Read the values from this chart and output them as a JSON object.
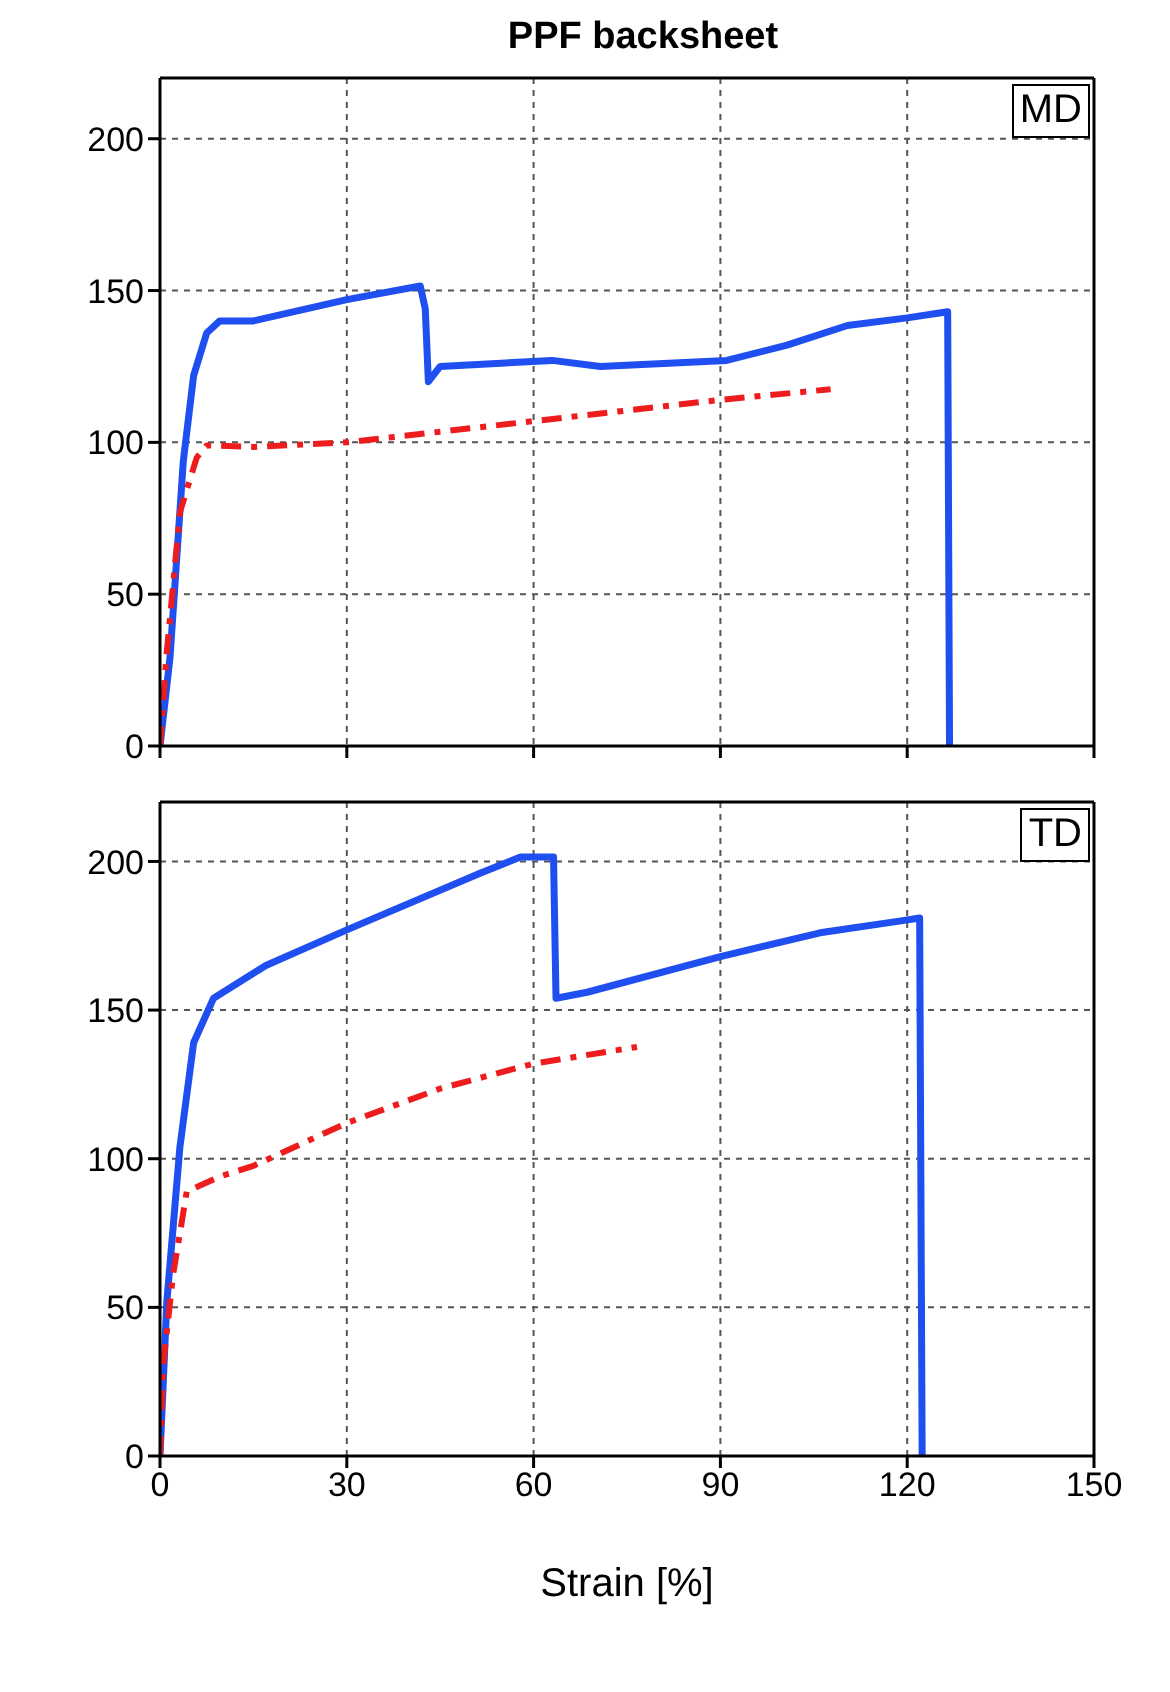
{
  "chart_data": [
    {
      "type": "line",
      "title": "PPF backsheet",
      "annotations": [
        "MD"
      ],
      "xlim": [
        0,
        150
      ],
      "xticks": [
        0,
        30,
        60,
        90,
        120,
        150
      ],
      "ylim": [
        0,
        220
      ],
      "yticks": [
        0,
        50,
        100,
        150,
        200
      ],
      "grid": true,
      "tick_labels": "y",
      "series": [
        {
          "color": "#1f4ff0",
          "line_style": "solid",
          "x": [
            0,
            1.6,
            3.75,
            5.4,
            7.5,
            9.6,
            15,
            30,
            41.8,
            42.6,
            43.1,
            45,
            63,
            70.7,
            91,
            100.7,
            110.4,
            120,
            126.5,
            126.8
          ],
          "values": [
            0,
            29,
            94,
            122,
            136,
            140,
            140,
            147,
            151.5,
            144,
            120,
            125,
            127,
            125,
            127,
            132,
            138.5,
            141,
            143,
            0
          ]
        },
        {
          "color": "#ee1c1c",
          "line_style": "dashed",
          "x": [
            0,
            1,
            3.2,
            5.9,
            7.5,
            15,
            30,
            60,
            90,
            107.7
          ],
          "values": [
            0,
            29,
            77,
            95,
            99,
            98.5,
            100,
            107,
            114,
            117.5
          ]
        }
      ]
    },
    {
      "type": "line",
      "annotations": [
        "TD"
      ],
      "xlabel": "Strain [%]",
      "xlim": [
        0,
        150
      ],
      "xticks": [
        0,
        30,
        60,
        90,
        120,
        150
      ],
      "ylim": [
        0,
        220
      ],
      "yticks": [
        0,
        50,
        100,
        150,
        200
      ],
      "grid": true,
      "series": [
        {
          "color": "#1f4ff0",
          "line_style": "solid",
          "x": [
            0,
            1.1,
            3.2,
            5.4,
            8.6,
            17,
            30,
            51.4,
            57.9,
            63.2,
            63.6,
            68.6,
            90,
            106,
            119,
            122,
            122.4
          ],
          "values": [
            0,
            52,
            104,
            139,
            154,
            165,
            177,
            196,
            201.5,
            201.5,
            154,
            156,
            168,
            176,
            180,
            181,
            0
          ]
        },
        {
          "color": "#ee1c1c",
          "line_style": "dashed",
          "x": [
            0,
            0.5,
            2.1,
            4.3,
            9.6,
            15,
            30,
            45,
            60,
            76.6
          ],
          "values": [
            0,
            30.5,
            61,
            89,
            94,
            97.6,
            112,
            123.6,
            132,
            137.6
          ]
        }
      ]
    }
  ]
}
